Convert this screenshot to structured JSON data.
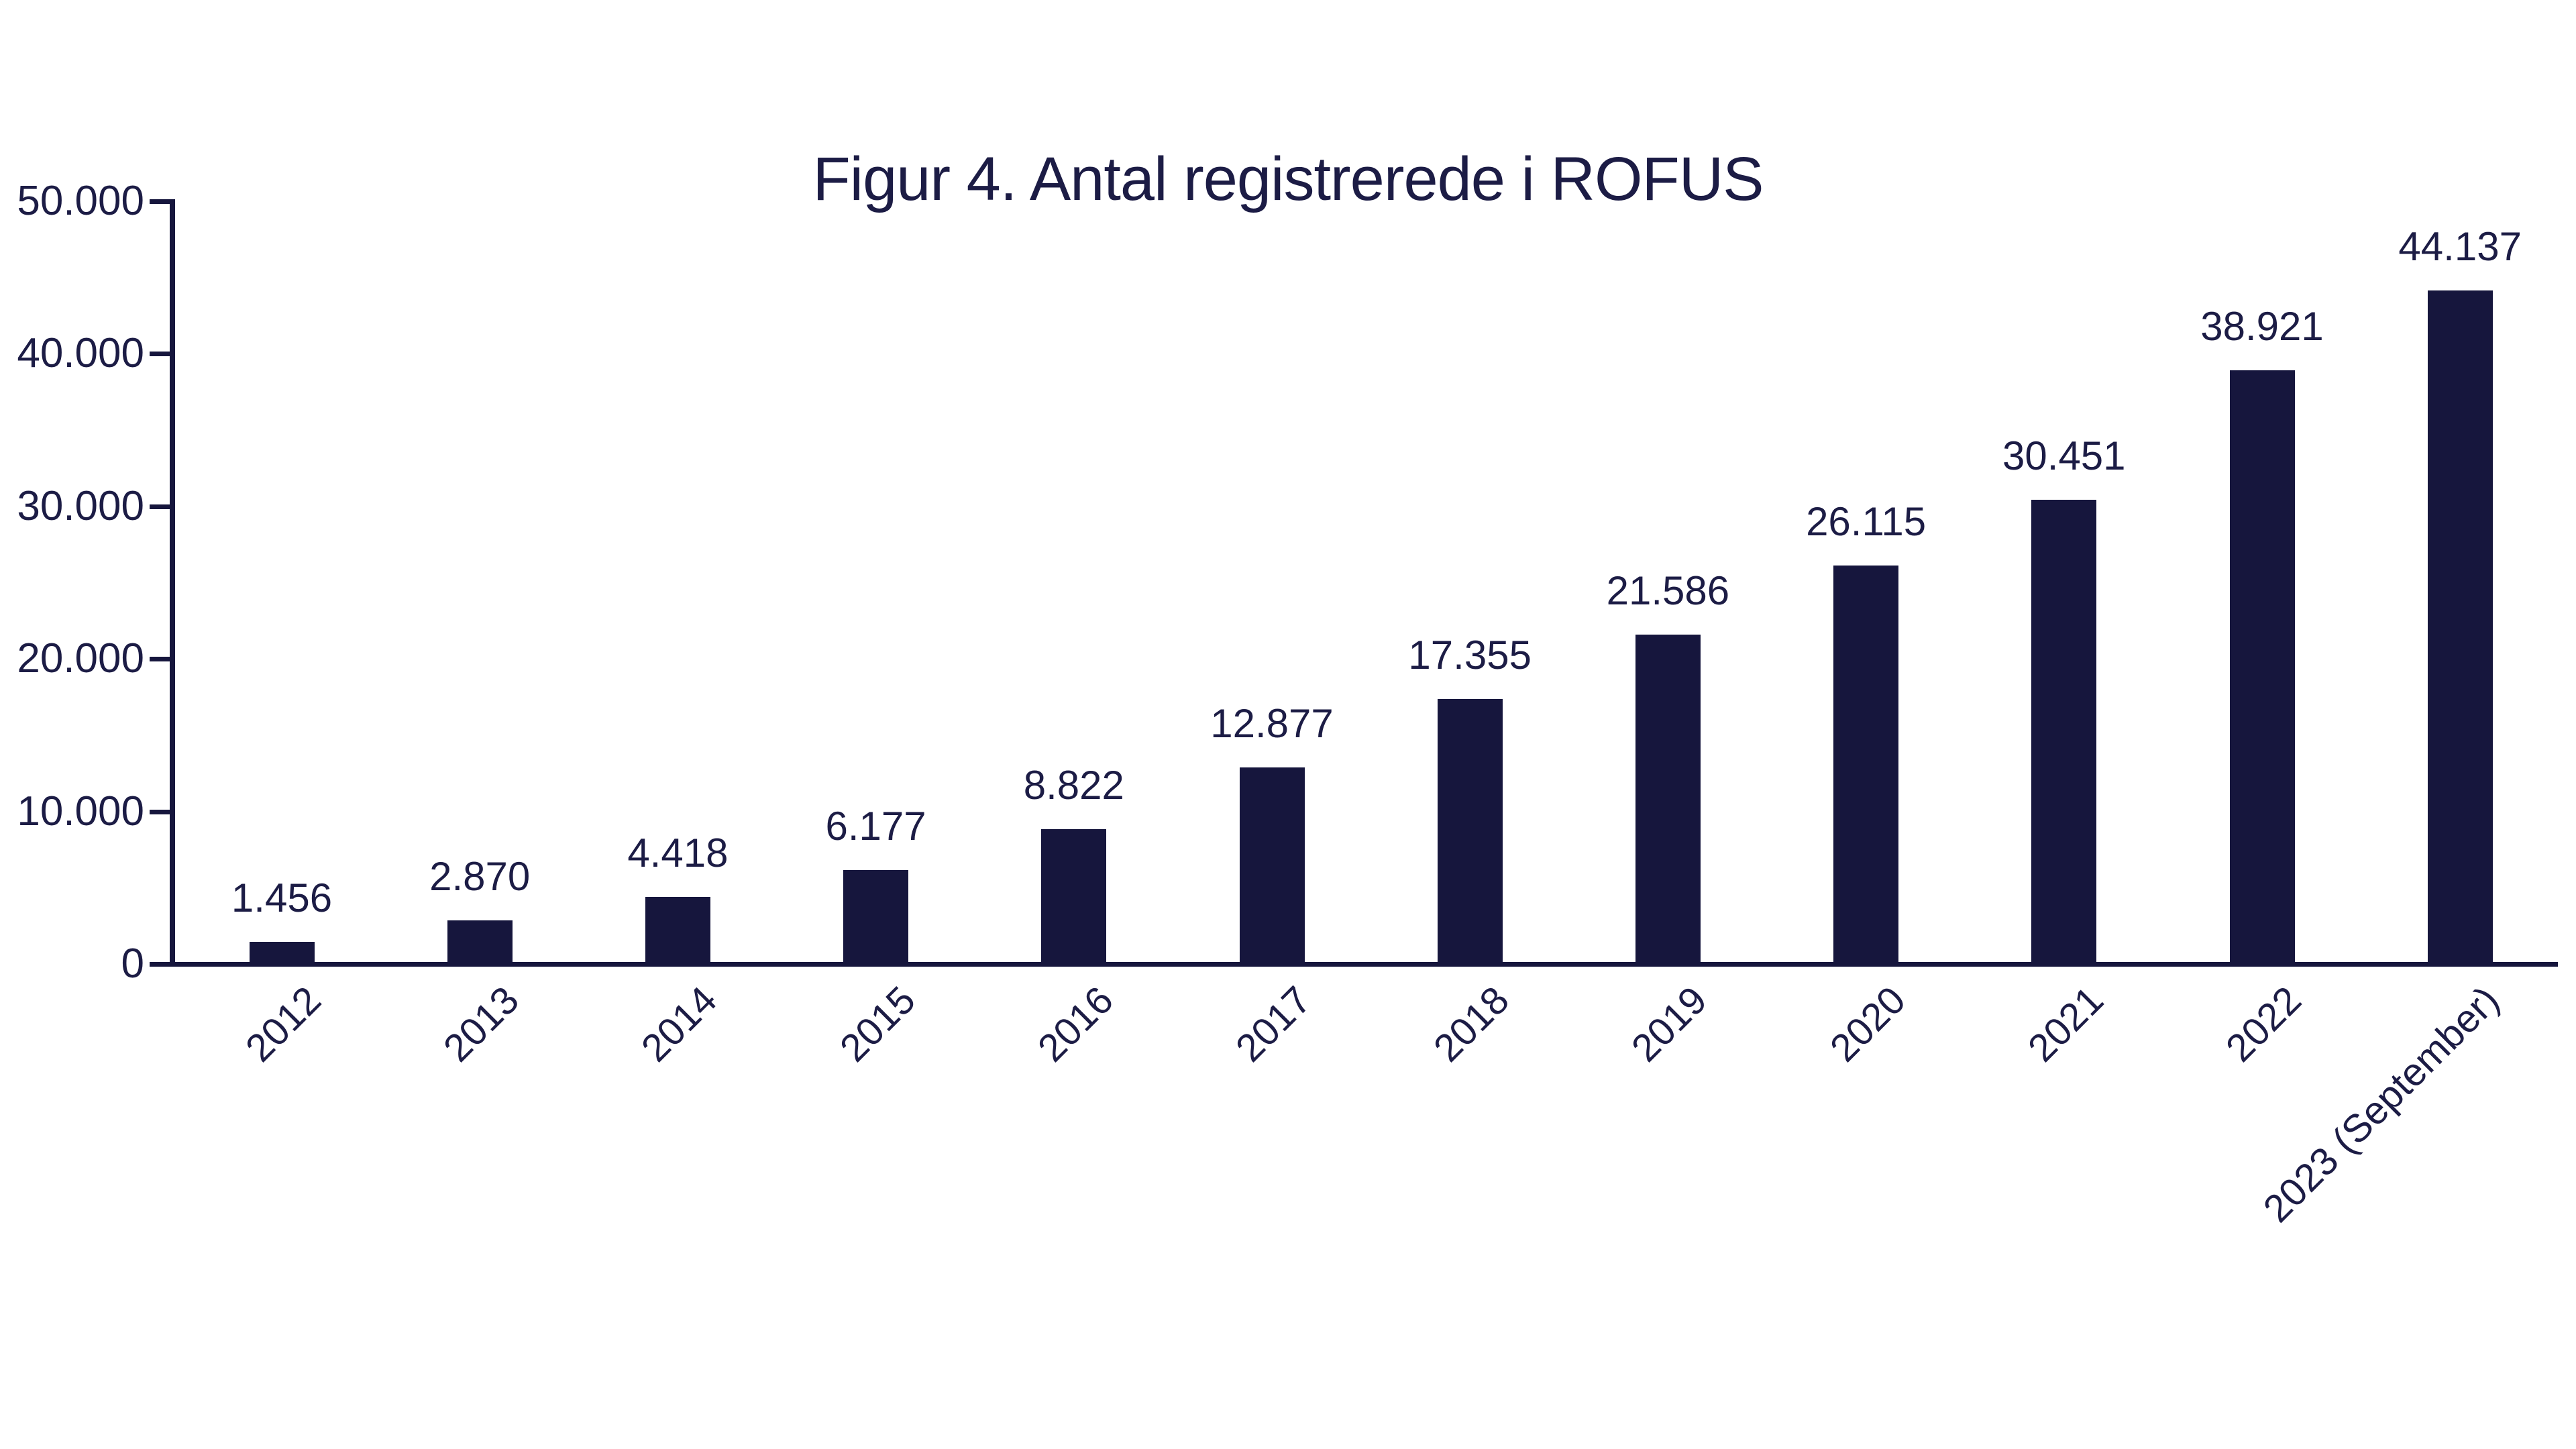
{
  "chart_data": {
    "type": "bar",
    "title": "Figur 4. Antal registrerede i ROFUS",
    "categories": [
      "2012",
      "2013",
      "2014",
      "2015",
      "2016",
      "2017",
      "2018",
      "2019",
      "2020",
      "2021",
      "2022",
      "2023 (September)"
    ],
    "values": [
      1456,
      2870,
      4418,
      6177,
      8822,
      12877,
      17355,
      21586,
      26115,
      30451,
      38921,
      44137
    ],
    "display_values": [
      "1.456",
      "2.870",
      "4.418",
      "6.177",
      "8.822",
      "12.877",
      "17.355",
      "21.586",
      "26.115",
      "30.451",
      "38.921",
      "44.137"
    ],
    "y_ticks": [
      0,
      10000,
      20000,
      30000,
      40000,
      50000
    ],
    "y_tick_labels": [
      "0",
      "10.000",
      "20.000",
      "30.000",
      "40.000",
      "50.000"
    ],
    "ylim": [
      0,
      50000
    ],
    "xlabel": "",
    "ylabel": "",
    "grid": false,
    "legend_position": "none",
    "colors": {
      "bar": "#16163D",
      "text": "#1C1C45",
      "background": "#FFFFFF"
    }
  }
}
